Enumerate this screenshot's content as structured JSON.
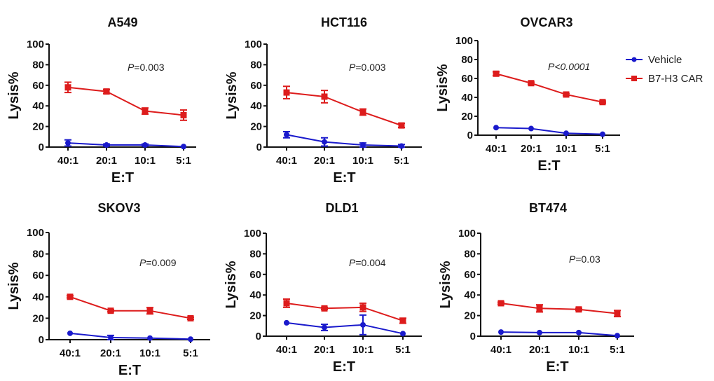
{
  "legend": [
    {
      "name": "Vehicle",
      "color": "#1a1acc",
      "marker": "circle"
    },
    {
      "name": "B7-H3 CAR",
      "color": "#dd1c1c",
      "marker": "square"
    }
  ],
  "chart_data": [
    {
      "type": "line",
      "title": "A549",
      "xlabel": "E:T",
      "ylabel": "Lysis%",
      "categories": [
        "40:1",
        "20:1",
        "10:1",
        "5:1"
      ],
      "ylim": [
        0,
        100
      ],
      "yticks": [
        0,
        20,
        40,
        60,
        80,
        100
      ],
      "annotation": {
        "prefix": "P",
        "text": "=0.003",
        "italic_all": false
      },
      "series": [
        {
          "name": "Vehicle",
          "values": [
            4,
            2,
            2,
            0.5
          ],
          "errors": [
            3,
            1,
            1,
            0.5
          ]
        },
        {
          "name": "B7-H3 CAR",
          "values": [
            58,
            54,
            35,
            31
          ],
          "errors": [
            5,
            2,
            3,
            5
          ]
        }
      ]
    },
    {
      "type": "line",
      "title": "HCT116",
      "xlabel": "E:T",
      "ylabel": "Lysis%",
      "categories": [
        "40:1",
        "20:1",
        "10:1",
        "5:1"
      ],
      "ylim": [
        0,
        100
      ],
      "yticks": [
        0,
        20,
        40,
        60,
        80,
        100
      ],
      "annotation": {
        "prefix": "P",
        "text": "=0.003",
        "italic_all": false
      },
      "series": [
        {
          "name": "Vehicle",
          "values": [
            12,
            5,
            2,
            1
          ],
          "errors": [
            3,
            4,
            2,
            1.5
          ]
        },
        {
          "name": "B7-H3 CAR",
          "values": [
            53,
            49,
            34,
            21
          ],
          "errors": [
            6,
            6,
            3,
            2
          ]
        }
      ]
    },
    {
      "type": "line",
      "title": "OVCAR3",
      "xlabel": "E:T",
      "ylabel": "Lysis%",
      "categories": [
        "40:1",
        "20:1",
        "10:1",
        "5:1"
      ],
      "ylim": [
        0,
        100
      ],
      "yticks": [
        0,
        20,
        40,
        60,
        80,
        100
      ],
      "annotation": {
        "prefix": "P",
        "text": "<0.0001",
        "italic_all": true
      },
      "series": [
        {
          "name": "Vehicle",
          "values": [
            8,
            7,
            2,
            1
          ],
          "errors": [
            0.5,
            0.5,
            0.5,
            0.5
          ]
        },
        {
          "name": "B7-H3 CAR",
          "values": [
            65,
            55,
            43,
            35
          ],
          "errors": [
            2,
            1,
            1,
            1
          ]
        }
      ]
    },
    {
      "type": "line",
      "title": "SKOV3",
      "xlabel": "E:T",
      "ylabel": "Lysis%",
      "categories": [
        "40:1",
        "20:1",
        "10:1",
        "5:1"
      ],
      "ylim": [
        0,
        100
      ],
      "yticks": [
        0,
        20,
        40,
        60,
        80,
        100
      ],
      "annotation": {
        "prefix": "P",
        "text": "=0.009",
        "italic_all": false
      },
      "series": [
        {
          "name": "Vehicle",
          "values": [
            6,
            2,
            1.5,
            0.5
          ],
          "errors": [
            0.5,
            2,
            0.5,
            0.5
          ]
        },
        {
          "name": "B7-H3 CAR",
          "values": [
            40,
            27,
            27,
            20
          ],
          "errors": [
            1,
            1,
            3,
            1
          ]
        }
      ]
    },
    {
      "type": "line",
      "title": "DLD1",
      "xlabel": "E:T",
      "ylabel": "Lysis%",
      "categories": [
        "40:1",
        "20:1",
        "10:1",
        "5:1"
      ],
      "ylim": [
        0,
        100
      ],
      "yticks": [
        0,
        20,
        40,
        60,
        80,
        100
      ],
      "annotation": {
        "prefix": "P",
        "text": "=0.004",
        "italic_all": false
      },
      "series": [
        {
          "name": "Vehicle",
          "values": [
            13,
            8.5,
            11,
            2.5
          ],
          "errors": [
            0.5,
            3,
            9.5,
            0.5
          ]
        },
        {
          "name": "B7-H3 CAR",
          "values": [
            32,
            27,
            28,
            15
          ],
          "errors": [
            4,
            1,
            4,
            2.5
          ]
        }
      ]
    },
    {
      "type": "line",
      "title": "BT474",
      "xlabel": "E:T",
      "ylabel": "Lysis%",
      "categories": [
        "40:1",
        "20:1",
        "10:1",
        "5:1"
      ],
      "ylim": [
        0,
        100
      ],
      "yticks": [
        0,
        20,
        40,
        60,
        80,
        100
      ],
      "annotation": {
        "prefix": "P",
        "text": "=0.03",
        "italic_all": false
      },
      "series": [
        {
          "name": "Vehicle",
          "values": [
            4,
            3.5,
            3.5,
            0.5
          ],
          "errors": [
            0.5,
            0.5,
            0.5,
            0.5
          ]
        },
        {
          "name": "B7-H3 CAR",
          "values": [
            32,
            27,
            26,
            22
          ],
          "errors": [
            1,
            3.5,
            1,
            3
          ]
        }
      ]
    }
  ]
}
